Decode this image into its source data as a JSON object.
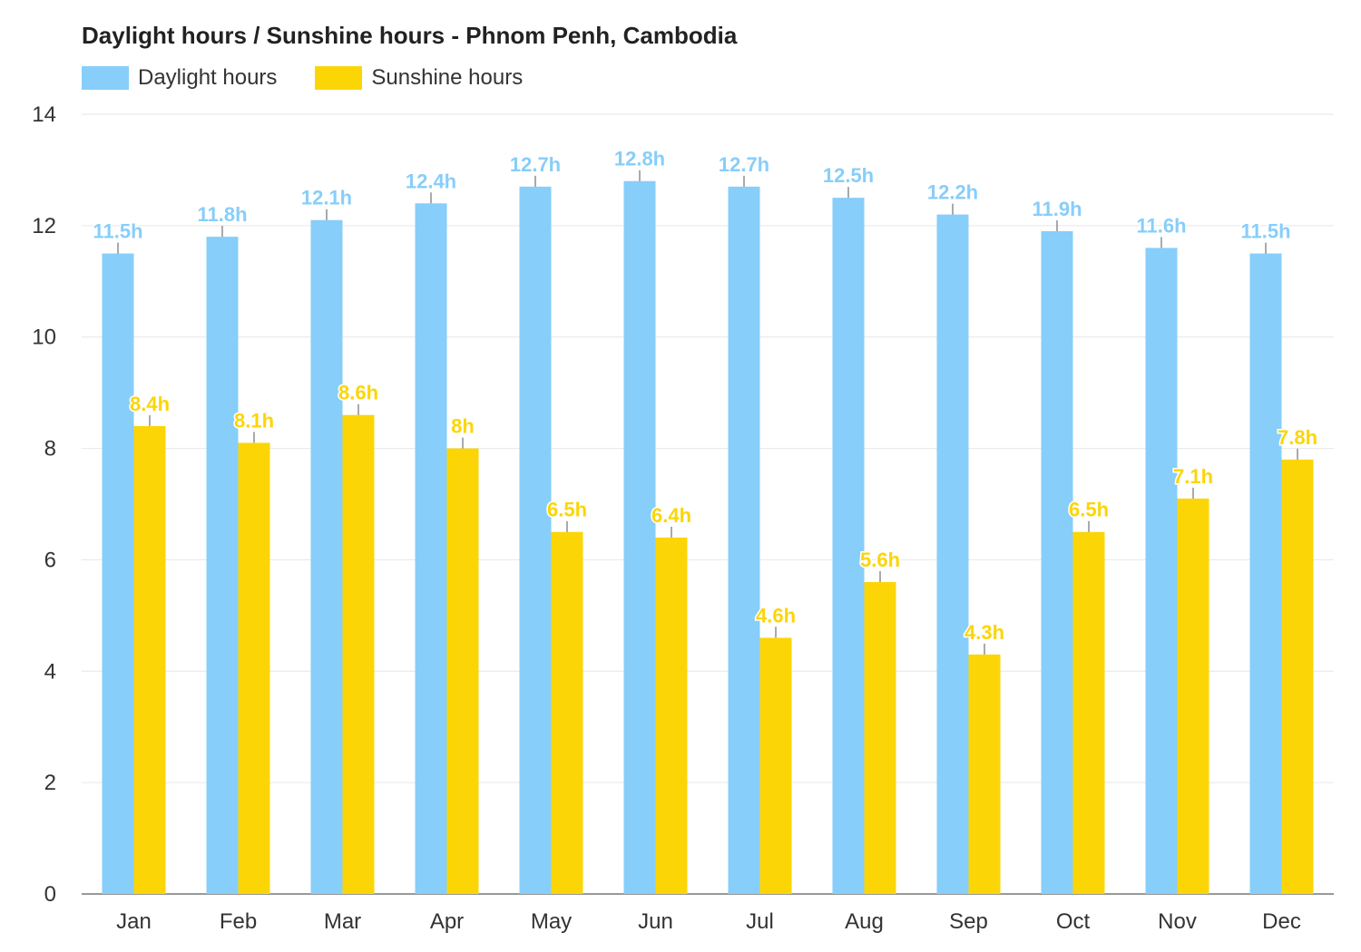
{
  "chart_data": {
    "type": "bar",
    "title": "Daylight hours / Sunshine hours - Phnom Penh, Cambodia",
    "categories": [
      "Jan",
      "Feb",
      "Mar",
      "Apr",
      "May",
      "Jun",
      "Jul",
      "Aug",
      "Sep",
      "Oct",
      "Nov",
      "Dec"
    ],
    "series": [
      {
        "name": "Daylight hours",
        "color": "#87CEFA",
        "values": [
          11.5,
          11.8,
          12.1,
          12.4,
          12.7,
          12.8,
          12.7,
          12.5,
          12.2,
          11.9,
          11.6,
          11.5
        ],
        "labels": [
          "11.5h",
          "11.8h",
          "12.1h",
          "12.4h",
          "12.7h",
          "12.8h",
          "12.7h",
          "12.5h",
          "12.2h",
          "11.9h",
          "11.6h",
          "11.5h"
        ]
      },
      {
        "name": "Sunshine hours",
        "color": "#FCD506",
        "values": [
          8.4,
          8.1,
          8.6,
          8.0,
          6.5,
          6.4,
          4.6,
          5.6,
          4.3,
          6.5,
          7.1,
          7.8
        ],
        "labels": [
          "8.4h",
          "8.1h",
          "8.6h",
          "8h",
          "6.5h",
          "6.4h",
          "4.6h",
          "5.6h",
          "4.3h",
          "6.5h",
          "7.1h",
          "7.8h"
        ]
      }
    ],
    "yticks": [
      "0",
      "2",
      "4",
      "6",
      "8",
      "10",
      "12",
      "14"
    ],
    "ylim": [
      0,
      14
    ],
    "grid": true,
    "legend_position": "top-left"
  }
}
